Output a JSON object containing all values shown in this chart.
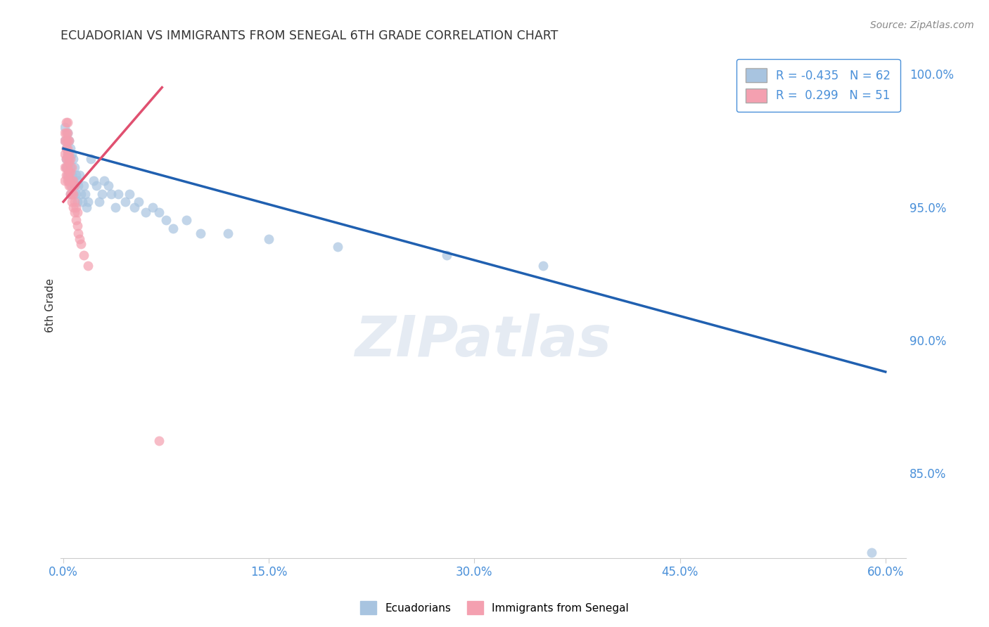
{
  "title": "ECUADORIAN VS IMMIGRANTS FROM SENEGAL 6TH GRADE CORRELATION CHART",
  "source": "Source: ZipAtlas.com",
  "xlabel_blue": "Ecuadorians",
  "xlabel_pink": "Immigrants from Senegal",
  "ylabel": "6th Grade",
  "xlim": [
    -0.002,
    0.615
  ],
  "ylim": [
    0.818,
    1.008
  ],
  "yticks": [
    0.85,
    0.9,
    0.95,
    1.0
  ],
  "ytick_labels": [
    "85.0%",
    "90.0%",
    "95.0%",
    "100.0%"
  ],
  "xticks": [
    0.0,
    0.15,
    0.3,
    0.45,
    0.6
  ],
  "xtick_labels": [
    "0.0%",
    "15.0%",
    "30.0%",
    "45.0%",
    "60.0%"
  ],
  "blue_R": -0.435,
  "blue_N": 62,
  "pink_R": 0.299,
  "pink_N": 51,
  "blue_color": "#a8c4e0",
  "pink_color": "#f4a0b0",
  "blue_line_color": "#2060b0",
  "pink_line_color": "#e05070",
  "blue_scatter_x": [
    0.001,
    0.001,
    0.002,
    0.002,
    0.002,
    0.003,
    0.003,
    0.003,
    0.004,
    0.004,
    0.004,
    0.005,
    0.005,
    0.005,
    0.005,
    0.006,
    0.006,
    0.006,
    0.007,
    0.007,
    0.007,
    0.008,
    0.008,
    0.009,
    0.009,
    0.01,
    0.01,
    0.011,
    0.012,
    0.013,
    0.014,
    0.015,
    0.016,
    0.017,
    0.018,
    0.02,
    0.022,
    0.024,
    0.026,
    0.028,
    0.03,
    0.033,
    0.035,
    0.038,
    0.04,
    0.045,
    0.048,
    0.052,
    0.055,
    0.06,
    0.065,
    0.07,
    0.075,
    0.08,
    0.09,
    0.1,
    0.12,
    0.15,
    0.2,
    0.28,
    0.35,
    0.59
  ],
  "blue_scatter_y": [
    0.98,
    0.975,
    0.972,
    0.968,
    0.965,
    0.978,
    0.97,
    0.962,
    0.975,
    0.968,
    0.96,
    0.972,
    0.965,
    0.96,
    0.955,
    0.97,
    0.962,
    0.958,
    0.968,
    0.96,
    0.955,
    0.965,
    0.958,
    0.962,
    0.955,
    0.96,
    0.952,
    0.958,
    0.962,
    0.955,
    0.952,
    0.958,
    0.955,
    0.95,
    0.952,
    0.968,
    0.96,
    0.958,
    0.952,
    0.955,
    0.96,
    0.958,
    0.955,
    0.95,
    0.955,
    0.952,
    0.955,
    0.95,
    0.952,
    0.948,
    0.95,
    0.948,
    0.945,
    0.942,
    0.945,
    0.94,
    0.94,
    0.938,
    0.935,
    0.932,
    0.928,
    0.82
  ],
  "pink_scatter_x": [
    0.001,
    0.001,
    0.001,
    0.001,
    0.001,
    0.002,
    0.002,
    0.002,
    0.002,
    0.002,
    0.002,
    0.002,
    0.003,
    0.003,
    0.003,
    0.003,
    0.003,
    0.003,
    0.003,
    0.003,
    0.003,
    0.004,
    0.004,
    0.004,
    0.004,
    0.004,
    0.004,
    0.005,
    0.005,
    0.005,
    0.005,
    0.006,
    0.006,
    0.006,
    0.006,
    0.007,
    0.007,
    0.007,
    0.008,
    0.008,
    0.008,
    0.009,
    0.009,
    0.01,
    0.01,
    0.011,
    0.012,
    0.013,
    0.015,
    0.018,
    0.07
  ],
  "pink_scatter_y": [
    0.96,
    0.965,
    0.97,
    0.975,
    0.978,
    0.962,
    0.965,
    0.968,
    0.972,
    0.975,
    0.978,
    0.982,
    0.96,
    0.962,
    0.965,
    0.968,
    0.97,
    0.972,
    0.975,
    0.978,
    0.982,
    0.958,
    0.96,
    0.963,
    0.967,
    0.97,
    0.975,
    0.955,
    0.958,
    0.963,
    0.968,
    0.952,
    0.955,
    0.96,
    0.965,
    0.95,
    0.955,
    0.96,
    0.948,
    0.952,
    0.958,
    0.945,
    0.95,
    0.943,
    0.948,
    0.94,
    0.938,
    0.936,
    0.932,
    0.928,
    0.862
  ],
  "blue_trendline_x": [
    0.0,
    0.6
  ],
  "blue_trendline_y": [
    0.972,
    0.888
  ],
  "pink_trendline_x": [
    0.0,
    0.072
  ],
  "pink_trendline_y": [
    0.952,
    0.995
  ],
  "watermark_zip": "ZIP",
  "watermark_atlas": "atlas",
  "background_color": "#ffffff",
  "grid_color": "#cccccc",
  "title_color": "#333333",
  "tick_color": "#4a90d9",
  "legend_border_color": "#4a90d9"
}
